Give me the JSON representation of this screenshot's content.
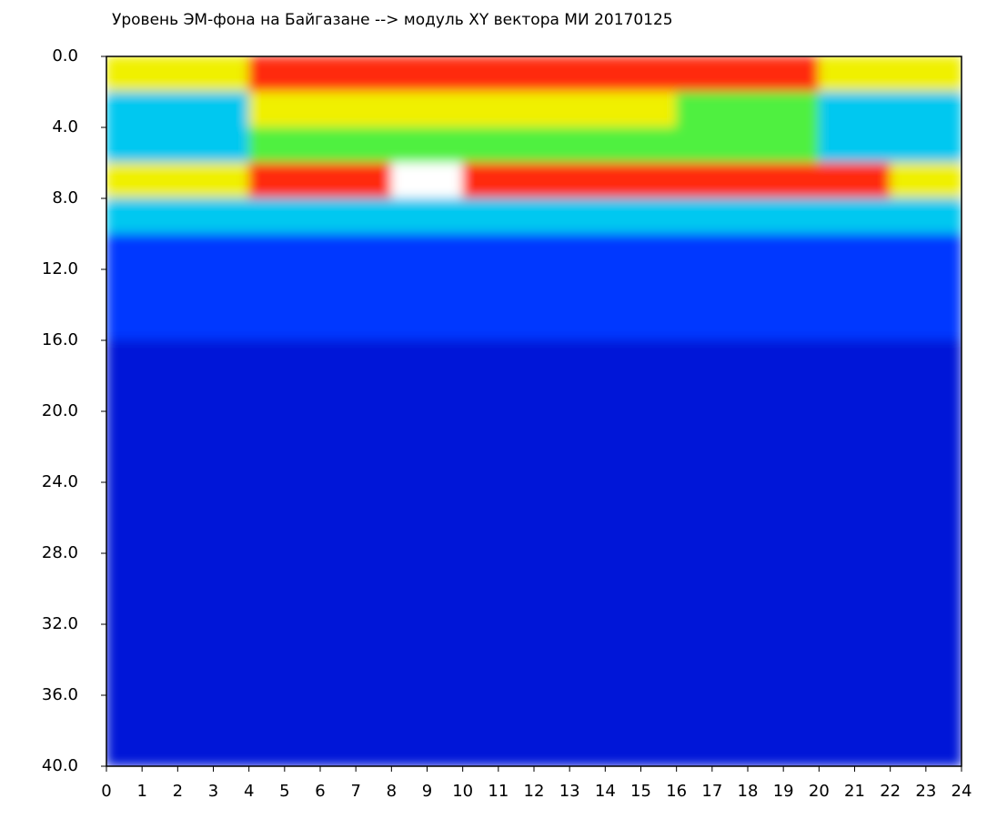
{
  "chart_data": {
    "type": "heatmap",
    "title": "Уровень ЭМ-фона на Байгазане  --> модуль XY вектора МИ  20170125",
    "xlim": [
      0,
      24
    ],
    "xticks": [
      0,
      1,
      2,
      3,
      4,
      5,
      6,
      7,
      8,
      9,
      10,
      11,
      12,
      13,
      14,
      15,
      16,
      17,
      18,
      19,
      20,
      21,
      22,
      23,
      24
    ],
    "ylim": [
      40,
      0
    ],
    "yticks": [
      {
        "value": 0,
        "label": "0.0"
      },
      {
        "value": 4,
        "label": "4.0"
      },
      {
        "value": 8,
        "label": "8.0"
      },
      {
        "value": 12,
        "label": "12.0"
      },
      {
        "value": 16,
        "label": "16.0"
      },
      {
        "value": 20,
        "label": "20.0"
      },
      {
        "value": 24,
        "label": "24.0"
      },
      {
        "value": 28,
        "label": "28.0"
      },
      {
        "value": 32,
        "label": "32.0"
      },
      {
        "value": 36,
        "label": "36.0"
      },
      {
        "value": 40,
        "label": "40.0"
      }
    ],
    "xbins": [
      0,
      2,
      4,
      6,
      8,
      10,
      12,
      14,
      16,
      18,
      20,
      22,
      24
    ],
    "ybins": [
      0,
      2,
      4,
      6,
      8,
      10,
      12,
      14,
      16,
      18,
      20,
      22,
      24,
      26,
      28,
      30,
      32,
      34,
      36,
      38,
      40
    ],
    "colors": [
      "#0018d8",
      "#0038ff",
      "#00c8f0",
      "#50f040",
      "#f0f000",
      "#ff2a10",
      "#ffffff"
    ],
    "z": [
      [
        4,
        4,
        5,
        5,
        5,
        5,
        5,
        5,
        5,
        5,
        4,
        4
      ],
      [
        2,
        2,
        4,
        4,
        4,
        4,
        4,
        4,
        3,
        3,
        2,
        2
      ],
      [
        2,
        2,
        3,
        3,
        3,
        3,
        3,
        3,
        3,
        3,
        2,
        2
      ],
      [
        4,
        4,
        5,
        5,
        6,
        5,
        5,
        5,
        5,
        5,
        5,
        4
      ],
      [
        2,
        2,
        2,
        2,
        2,
        2,
        2,
        2,
        2,
        2,
        2,
        2
      ],
      [
        1,
        1,
        1,
        1,
        1,
        1,
        1,
        1,
        1,
        1,
        1,
        1
      ],
      [
        1,
        1,
        1,
        1,
        1,
        1,
        1,
        1,
        1,
        1,
        1,
        1
      ],
      [
        1,
        1,
        1,
        1,
        1,
        1,
        1,
        1,
        1,
        1,
        1,
        1
      ],
      [
        0,
        0,
        0,
        0,
        0,
        0,
        0,
        0,
        0,
        0,
        0,
        0
      ],
      [
        0,
        0,
        0,
        0,
        0,
        0,
        0,
        0,
        0,
        0,
        0,
        0
      ],
      [
        0,
        0,
        0,
        0,
        0,
        0,
        0,
        0,
        0,
        0,
        0,
        0
      ],
      [
        0,
        0,
        0,
        0,
        0,
        0,
        0,
        0,
        0,
        0,
        0,
        0
      ],
      [
        0,
        0,
        0,
        0,
        0,
        0,
        0,
        0,
        0,
        0,
        0,
        0
      ],
      [
        0,
        0,
        0,
        0,
        0,
        0,
        0,
        0,
        0,
        0,
        0,
        0
      ],
      [
        0,
        0,
        0,
        0,
        0,
        0,
        0,
        0,
        0,
        0,
        0,
        0
      ],
      [
        0,
        0,
        0,
        0,
        0,
        0,
        0,
        0,
        0,
        0,
        0,
        0
      ],
      [
        0,
        0,
        0,
        0,
        0,
        0,
        0,
        0,
        0,
        0,
        0,
        0
      ],
      [
        0,
        0,
        0,
        0,
        0,
        0,
        0,
        0,
        0,
        0,
        0,
        0
      ],
      [
        0,
        0,
        0,
        0,
        0,
        0,
        0,
        0,
        0,
        0,
        0,
        0
      ],
      [
        0,
        0,
        0,
        0,
        0,
        0,
        0,
        0,
        0,
        0,
        0,
        0
      ]
    ]
  }
}
